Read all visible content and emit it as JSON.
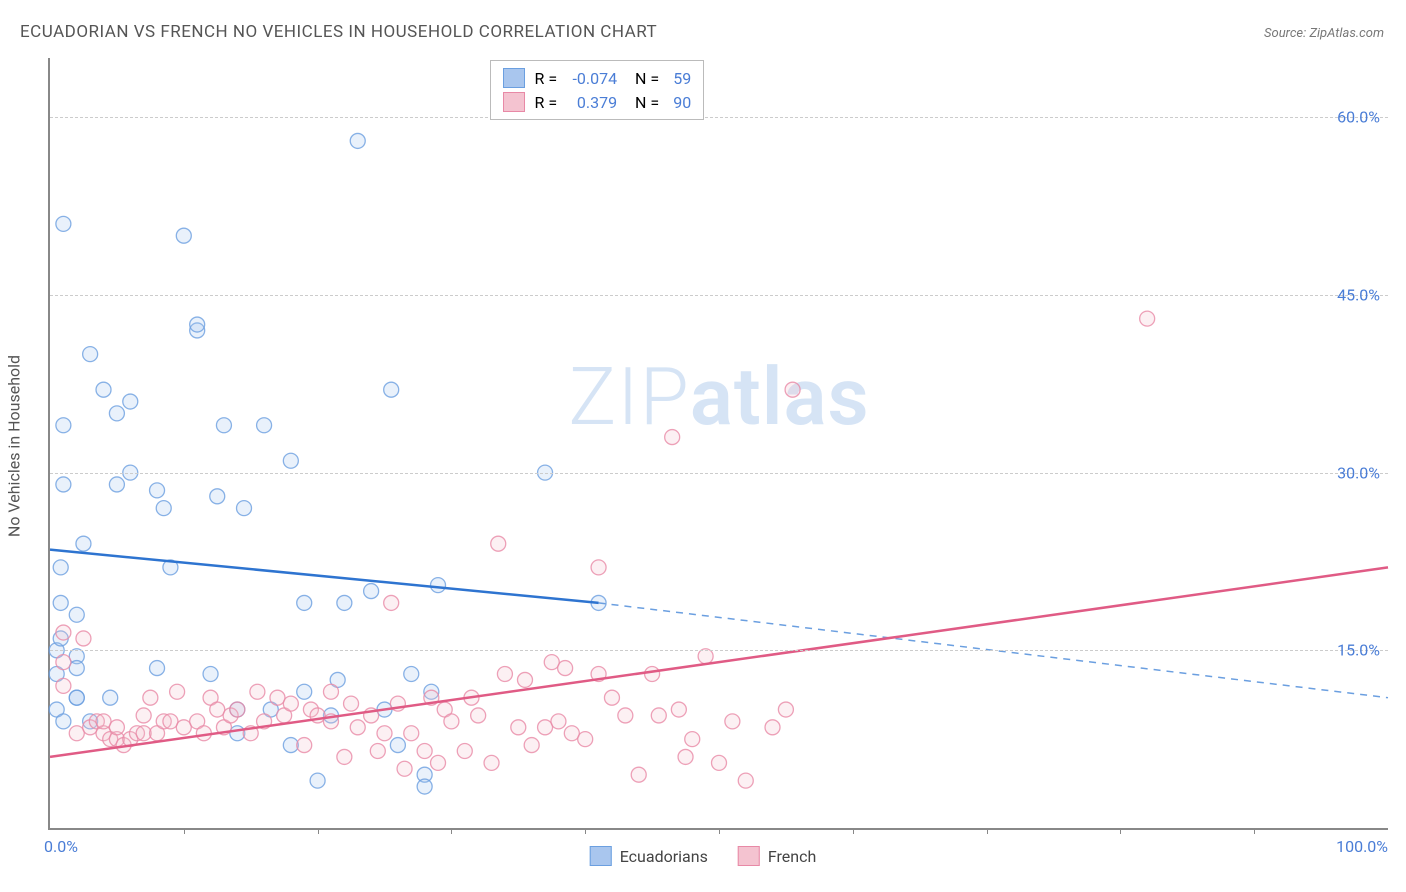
{
  "title": "ECUADORIAN VS FRENCH NO VEHICLES IN HOUSEHOLD CORRELATION CHART",
  "source_prefix": "Source: ",
  "source_name": "ZipAtlas.com",
  "y_axis_label": "No Vehicles in Household",
  "watermark_thin": "ZIP",
  "watermark_bold": "atlas",
  "chart": {
    "type": "scatter",
    "xlim": [
      0,
      100
    ],
    "ylim": [
      0,
      65
    ],
    "x_lim_labels": [
      "0.0%",
      "100.0%"
    ],
    "y_ticks": [
      15,
      30,
      45,
      60
    ],
    "y_tick_labels": [
      "15.0%",
      "30.0%",
      "45.0%",
      "60.0%"
    ],
    "x_minor_ticks": [
      10,
      20,
      30,
      40,
      50,
      60,
      70,
      80,
      90
    ],
    "background_color": "#ffffff",
    "grid_color": "#cccccc",
    "axis_color": "#888888",
    "marker_radius": 7.5,
    "marker_opacity_fill": 0.25,
    "marker_opacity_stroke": 0.8,
    "trend_line_width": 2.5,
    "series": [
      {
        "id": "ecuadorians",
        "label": "Ecuadorians",
        "color_fill": "#a9c6ee",
        "color_stroke": "#6b9fe0",
        "trend_color": "#2e74d0",
        "R": "-0.074",
        "N": "59",
        "trend": {
          "x1": 0,
          "y1": 23.5,
          "x2": 41,
          "y2": 19,
          "x3": 100,
          "y3": 11
        },
        "points": [
          [
            0.5,
            15
          ],
          [
            0.5,
            13
          ],
          [
            0.5,
            10
          ],
          [
            0.8,
            22
          ],
          [
            0.8,
            19
          ],
          [
            0.8,
            16
          ],
          [
            1,
            51
          ],
          [
            1,
            34
          ],
          [
            1,
            29
          ],
          [
            1,
            9
          ],
          [
            2,
            11
          ],
          [
            2,
            18
          ],
          [
            2,
            14.5
          ],
          [
            2,
            13.5
          ],
          [
            2,
            11
          ],
          [
            3,
            9
          ],
          [
            2.5,
            24
          ],
          [
            3,
            40
          ],
          [
            4,
            37
          ],
          [
            4.5,
            11
          ],
          [
            5,
            29
          ],
          [
            5,
            35
          ],
          [
            6,
            30
          ],
          [
            6,
            36
          ],
          [
            8,
            13.5
          ],
          [
            8,
            28.5
          ],
          [
            8.5,
            27
          ],
          [
            9,
            22
          ],
          [
            10,
            50
          ],
          [
            11,
            42
          ],
          [
            11,
            42.5
          ],
          [
            12,
            13
          ],
          [
            12.5,
            28
          ],
          [
            13,
            34
          ],
          [
            14,
            8
          ],
          [
            14,
            10
          ],
          [
            14.5,
            27
          ],
          [
            16,
            34
          ],
          [
            16.5,
            10
          ],
          [
            18,
            31
          ],
          [
            18,
            7
          ],
          [
            19,
            19
          ],
          [
            19,
            11.5
          ],
          [
            20,
            4
          ],
          [
            21,
            9.5
          ],
          [
            21.5,
            12.5
          ],
          [
            22,
            19
          ],
          [
            23,
            58
          ],
          [
            24,
            20
          ],
          [
            25,
            10
          ],
          [
            25.5,
            37
          ],
          [
            26,
            7
          ],
          [
            27,
            13
          ],
          [
            28,
            4.5
          ],
          [
            28.5,
            11.5
          ],
          [
            29,
            20.5
          ],
          [
            37,
            30
          ],
          [
            41,
            19
          ],
          [
            28,
            3.5
          ]
        ]
      },
      {
        "id": "french",
        "label": "French",
        "color_fill": "#f4c3d0",
        "color_stroke": "#e889a6",
        "trend_color": "#e05b85",
        "R": "0.379",
        "N": "90",
        "trend": {
          "x1": 0,
          "y1": 6,
          "x2": 100,
          "y2": 22,
          "x3": 100,
          "y3": 22
        },
        "points": [
          [
            1,
            16.5
          ],
          [
            1,
            14
          ],
          [
            1,
            12
          ],
          [
            2,
            8
          ],
          [
            2.5,
            16
          ],
          [
            3,
            8.5
          ],
          [
            3.5,
            9
          ],
          [
            4,
            8
          ],
          [
            4,
            9
          ],
          [
            4.5,
            7.5
          ],
          [
            5,
            7.5
          ],
          [
            5,
            8.5
          ],
          [
            5.5,
            7
          ],
          [
            6,
            7.5
          ],
          [
            6.5,
            8
          ],
          [
            7,
            9.5
          ],
          [
            7,
            8
          ],
          [
            7.5,
            11
          ],
          [
            8,
            8
          ],
          [
            8.5,
            9
          ],
          [
            9,
            9
          ],
          [
            9.5,
            11.5
          ],
          [
            10,
            8.5
          ],
          [
            11,
            9
          ],
          [
            11.5,
            8
          ],
          [
            12,
            11
          ],
          [
            12.5,
            10
          ],
          [
            13,
            8.5
          ],
          [
            13.5,
            9.5
          ],
          [
            14,
            10
          ],
          [
            15,
            8
          ],
          [
            15.5,
            11.5
          ],
          [
            16,
            9
          ],
          [
            17,
            11
          ],
          [
            17.5,
            9.5
          ],
          [
            18,
            10.5
          ],
          [
            19,
            7
          ],
          [
            19.5,
            10
          ],
          [
            20,
            9.5
          ],
          [
            21,
            11.5
          ],
          [
            21,
            9
          ],
          [
            22,
            6
          ],
          [
            22.5,
            10.5
          ],
          [
            23,
            8.5
          ],
          [
            24,
            9.5
          ],
          [
            24.5,
            6.5
          ],
          [
            25,
            8
          ],
          [
            25.5,
            19
          ],
          [
            26,
            10.5
          ],
          [
            26.5,
            5
          ],
          [
            27,
            8
          ],
          [
            28,
            6.5
          ],
          [
            28.5,
            11
          ],
          [
            29,
            5.5
          ],
          [
            29.5,
            10
          ],
          [
            30,
            9
          ],
          [
            31,
            6.5
          ],
          [
            31.5,
            11
          ],
          [
            32,
            9.5
          ],
          [
            33,
            5.5
          ],
          [
            33.5,
            24
          ],
          [
            34,
            13
          ],
          [
            35,
            8.5
          ],
          [
            35.5,
            12.5
          ],
          [
            36,
            7
          ],
          [
            37,
            8.5
          ],
          [
            37.5,
            14
          ],
          [
            38,
            9
          ],
          [
            38.5,
            13.5
          ],
          [
            39,
            8
          ],
          [
            40,
            7.5
          ],
          [
            41,
            22
          ],
          [
            41,
            13
          ],
          [
            42,
            11
          ],
          [
            43,
            9.5
          ],
          [
            44,
            4.5
          ],
          [
            45,
            13
          ],
          [
            45.5,
            9.5
          ],
          [
            46.5,
            33
          ],
          [
            47,
            10
          ],
          [
            47.5,
            6
          ],
          [
            48,
            7.5
          ],
          [
            49,
            14.5
          ],
          [
            50,
            5.5
          ],
          [
            51,
            9
          ],
          [
            52,
            4
          ],
          [
            54,
            8.5
          ],
          [
            55,
            10
          ],
          [
            55.5,
            37
          ],
          [
            82,
            43
          ]
        ]
      }
    ]
  }
}
